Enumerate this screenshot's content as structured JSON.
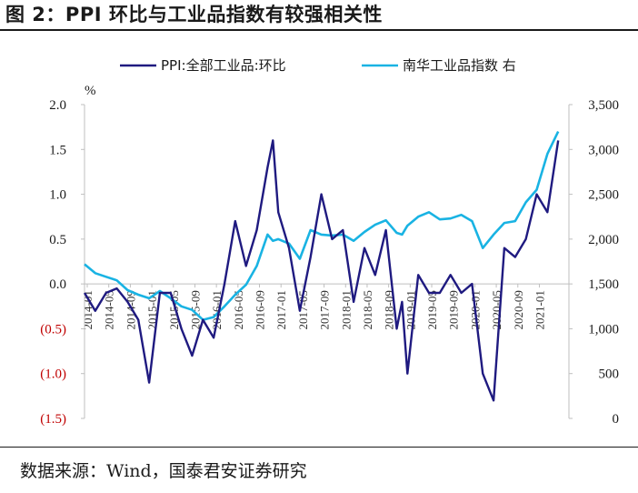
{
  "figure": {
    "title": "图 2：PPI 环比与工业品指数有较强相关性",
    "source": "数据来源：Wind，国泰君安证券研究"
  },
  "colors": {
    "ppi": "#1f1a80",
    "nanhua": "#19b3e3",
    "negative_tick": "#c00000",
    "axis": "#bfbfbf"
  },
  "chart_data": {
    "type": "line",
    "left_unit": "%",
    "x_tick_labels": [
      "2014-01",
      "2014-05",
      "2014-09",
      "2015-01",
      "2015-05",
      "2015-09",
      "2016-01",
      "2016-05",
      "2016-09",
      "2017-01",
      "2017-05",
      "2017-09",
      "2018-01",
      "2018-05",
      "2018-09",
      "2019-01",
      "2019-05",
      "2019-09",
      "2020-01",
      "2020-05",
      "2020-09",
      "2021-01"
    ],
    "y_left": {
      "range": [
        -1.5,
        2.0
      ],
      "ticks": [
        "(1.5)",
        "(1.0)",
        "(0.5)",
        "0.0",
        "0.5",
        "1.0",
        "1.5",
        "2.0"
      ],
      "tick_values": [
        -1.5,
        -1.0,
        -0.5,
        0.0,
        0.5,
        1.0,
        1.5,
        2.0
      ]
    },
    "y_right": {
      "range": [
        0,
        3500
      ],
      "ticks": [
        "0",
        "500",
        "1,000",
        "1,500",
        "2,000",
        "2,500",
        "3,000",
        "3,500"
      ],
      "tick_values": [
        0,
        500,
        1000,
        1500,
        2000,
        2500,
        3000,
        3500
      ]
    },
    "series": [
      {
        "name": "PPI:全部工业品:环比",
        "axis": "left",
        "dates": [
          "2014-01",
          "2014-03",
          "2014-05",
          "2014-07",
          "2014-09",
          "2014-11",
          "2015-01",
          "2015-03",
          "2015-05",
          "2015-07",
          "2015-09",
          "2015-11",
          "2016-01",
          "2016-03",
          "2016-05",
          "2016-07",
          "2016-09",
          "2016-11",
          "2016-12",
          "2017-01",
          "2017-03",
          "2017-05",
          "2017-07",
          "2017-09",
          "2017-11",
          "2018-01",
          "2018-03",
          "2018-05",
          "2018-07",
          "2018-09",
          "2018-11",
          "2018-12",
          "2019-01",
          "2019-03",
          "2019-05",
          "2019-07",
          "2019-09",
          "2019-11",
          "2020-01",
          "2020-03",
          "2020-05",
          "2020-07",
          "2020-09",
          "2020-11",
          "2021-01",
          "2021-03",
          "2021-05"
        ],
        "values": [
          -0.1,
          -0.3,
          -0.1,
          -0.05,
          -0.2,
          -0.4,
          -1.1,
          -0.1,
          -0.1,
          -0.5,
          -0.8,
          -0.4,
          -0.6,
          0.0,
          0.7,
          0.2,
          0.6,
          1.3,
          1.6,
          0.8,
          0.4,
          -0.3,
          0.3,
          1.0,
          0.5,
          0.6,
          -0.2,
          0.4,
          0.1,
          0.6,
          -0.5,
          -0.2,
          -1.0,
          0.1,
          -0.1,
          -0.1,
          0.1,
          -0.1,
          0.0,
          -1.0,
          -1.3,
          0.4,
          0.3,
          0.5,
          1.0,
          0.8,
          1.6
        ]
      },
      {
        "name": "南华工业品指数 右",
        "axis": "right",
        "dates": [
          "2014-01",
          "2014-03",
          "2014-05",
          "2014-07",
          "2014-09",
          "2014-11",
          "2015-01",
          "2015-03",
          "2015-05",
          "2015-07",
          "2015-09",
          "2015-11",
          "2016-01",
          "2016-03",
          "2016-05",
          "2016-07",
          "2016-09",
          "2016-11",
          "2016-12",
          "2017-01",
          "2017-03",
          "2017-05",
          "2017-07",
          "2017-09",
          "2017-11",
          "2018-01",
          "2018-03",
          "2018-05",
          "2018-07",
          "2018-09",
          "2018-11",
          "2018-12",
          "2019-01",
          "2019-03",
          "2019-05",
          "2019-07",
          "2019-09",
          "2019-11",
          "2020-01",
          "2020-03",
          "2020-05",
          "2020-07",
          "2020-09",
          "2020-11",
          "2021-01",
          "2021-03",
          "2021-05"
        ],
        "values": [
          1720,
          1620,
          1580,
          1540,
          1430,
          1380,
          1340,
          1420,
          1340,
          1250,
          1210,
          1100,
          1130,
          1250,
          1380,
          1490,
          1700,
          2050,
          1980,
          2000,
          1950,
          1780,
          2100,
          2050,
          2040,
          2050,
          1980,
          2080,
          2160,
          2210,
          2070,
          2050,
          2150,
          2250,
          2300,
          2220,
          2230,
          2270,
          2200,
          1900,
          2050,
          2180,
          2200,
          2410,
          2550,
          2950,
          3200
        ]
      }
    ]
  }
}
